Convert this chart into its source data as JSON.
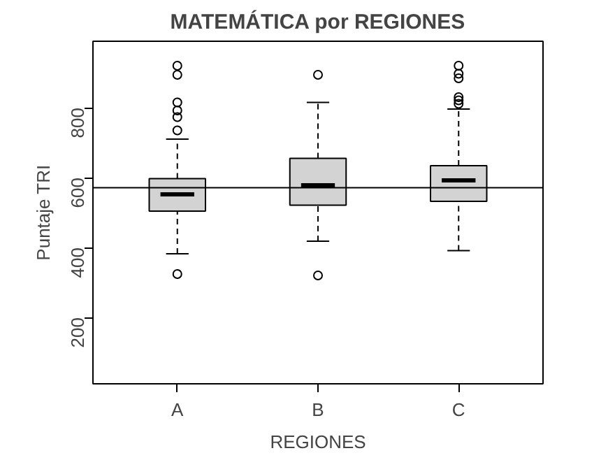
{
  "chart_data": {
    "type": "box",
    "title": "MATEMÁTICA por REGIONES",
    "xlabel": "REGIONES",
    "ylabel": "Puntaje TRI",
    "categories": [
      "A",
      "B",
      "C"
    ],
    "boxes": [
      {
        "low": 382,
        "q1": 504,
        "median": 552,
        "q3": 597,
        "high": 710,
        "outliers": [
          324,
          735,
          773,
          792,
          815,
          894,
          920
        ]
      },
      {
        "low": 418,
        "q1": 521,
        "median": 578,
        "q3": 655,
        "high": 815,
        "outliers": [
          320,
          894
        ]
      },
      {
        "low": 391,
        "q1": 532,
        "median": 592,
        "q3": 634,
        "high": 796,
        "outliers": [
          811,
          821,
          830,
          884,
          897,
          920
        ]
      }
    ],
    "color": "#d3d3d3",
    "ylim": [
      10,
      990
    ],
    "yticks": [
      200,
      400,
      600,
      800
    ],
    "grid": false,
    "ref_lines": [
      {
        "axis": "y",
        "value": 571,
        "color": "#000000"
      }
    ]
  }
}
